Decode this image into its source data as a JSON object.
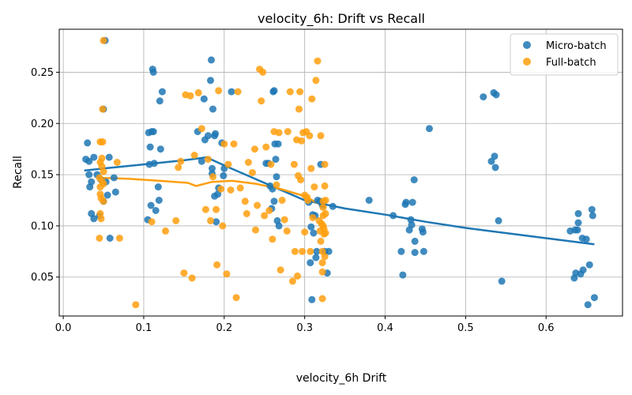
{
  "chart_data": {
    "type": "scatter",
    "title": "velocity_6h: Drift vs Recall",
    "xlabel": "velocity_6h Drift",
    "ylabel": "Recall",
    "xlim": [
      -0.005,
      0.695
    ],
    "ylim": [
      0.012,
      0.292
    ],
    "xticks": [
      0.0,
      0.1,
      0.2,
      0.3,
      0.4,
      0.5,
      0.6
    ],
    "xtick_labels": [
      "0.0",
      "0.1",
      "0.2",
      "0.3",
      "0.4",
      "0.5",
      "0.6"
    ],
    "yticks": [
      0.05,
      0.1,
      0.15,
      0.2,
      0.25
    ],
    "ytick_labels": [
      "0.05",
      "0.10",
      "0.15",
      "0.20",
      "0.25"
    ],
    "grid": true,
    "legend_position": "top-right",
    "series": [
      {
        "name": "Micro-batch",
        "color": "#1f77b4",
        "points": [
          [
            0.052,
            0.281
          ],
          [
            0.05,
            0.214
          ],
          [
            0.028,
            0.165
          ],
          [
            0.032,
            0.163
          ],
          [
            0.03,
            0.181
          ],
          [
            0.032,
            0.15
          ],
          [
            0.033,
            0.138
          ],
          [
            0.035,
            0.112
          ],
          [
            0.035,
            0.143
          ],
          [
            0.038,
            0.167
          ],
          [
            0.038,
            0.107
          ],
          [
            0.042,
            0.15
          ],
          [
            0.045,
            0.11
          ],
          [
            0.047,
            0.145
          ],
          [
            0.05,
            0.124
          ],
          [
            0.053,
            0.143
          ],
          [
            0.055,
            0.13
          ],
          [
            0.057,
            0.167
          ],
          [
            0.058,
            0.088
          ],
          [
            0.063,
            0.147
          ],
          [
            0.065,
            0.133
          ],
          [
            0.105,
            0.106
          ],
          [
            0.106,
            0.191
          ],
          [
            0.107,
            0.16
          ],
          [
            0.108,
            0.177
          ],
          [
            0.109,
            0.12
          ],
          [
            0.11,
            0.192
          ],
          [
            0.111,
            0.253
          ],
          [
            0.112,
            0.25
          ],
          [
            0.112,
            0.192
          ],
          [
            0.113,
            0.161
          ],
          [
            0.115,
            0.115
          ],
          [
            0.118,
            0.138
          ],
          [
            0.119,
            0.125
          ],
          [
            0.12,
            0.222
          ],
          [
            0.121,
            0.175
          ],
          [
            0.123,
            0.231
          ],
          [
            0.167,
            0.192
          ],
          [
            0.172,
            0.163
          ],
          [
            0.175,
            0.224
          ],
          [
            0.176,
            0.184
          ],
          [
            0.18,
            0.188
          ],
          [
            0.183,
            0.242
          ],
          [
            0.184,
            0.262
          ],
          [
            0.185,
            0.156
          ],
          [
            0.185,
            0.151
          ],
          [
            0.186,
            0.214
          ],
          [
            0.188,
            0.129
          ],
          [
            0.188,
            0.188
          ],
          [
            0.189,
            0.19
          ],
          [
            0.19,
            0.104
          ],
          [
            0.192,
            0.131
          ],
          [
            0.193,
            0.137
          ],
          [
            0.197,
            0.181
          ],
          [
            0.199,
            0.149
          ],
          [
            0.2,
            0.156
          ],
          [
            0.209,
            0.231
          ],
          [
            0.252,
            0.161
          ],
          [
            0.255,
            0.161
          ],
          [
            0.257,
            0.139
          ],
          [
            0.259,
            0.117
          ],
          [
            0.26,
            0.136
          ],
          [
            0.261,
            0.231
          ],
          [
            0.262,
            0.232
          ],
          [
            0.262,
            0.124
          ],
          [
            0.263,
            0.18
          ],
          [
            0.264,
            0.165
          ],
          [
            0.265,
            0.148
          ],
          [
            0.266,
            0.105
          ],
          [
            0.267,
            0.18
          ],
          [
            0.268,
            0.1
          ],
          [
            0.305,
            0.123
          ],
          [
            0.307,
            0.064
          ],
          [
            0.308,
            0.099
          ],
          [
            0.309,
            0.028
          ],
          [
            0.31,
            0.111
          ],
          [
            0.311,
            0.093
          ],
          [
            0.313,
            0.11
          ],
          [
            0.314,
            0.069
          ],
          [
            0.315,
            0.075
          ],
          [
            0.316,
            0.125
          ],
          [
            0.319,
            0.124
          ],
          [
            0.32,
            0.16
          ],
          [
            0.322,
            0.12
          ],
          [
            0.325,
            0.075
          ],
          [
            0.328,
            0.054
          ],
          [
            0.33,
            0.075
          ],
          [
            0.335,
            0.119
          ],
          [
            0.38,
            0.125
          ],
          [
            0.41,
            0.11
          ],
          [
            0.42,
            0.075
          ],
          [
            0.422,
            0.052
          ],
          [
            0.425,
            0.121
          ],
          [
            0.426,
            0.123
          ],
          [
            0.43,
            0.096
          ],
          [
            0.432,
            0.106
          ],
          [
            0.433,
            0.101
          ],
          [
            0.434,
            0.123
          ],
          [
            0.436,
            0.145
          ],
          [
            0.437,
            0.085
          ],
          [
            0.437,
            0.074
          ],
          [
            0.446,
            0.097
          ],
          [
            0.447,
            0.094
          ],
          [
            0.448,
            0.075
          ],
          [
            0.455,
            0.195
          ],
          [
            0.522,
            0.226
          ],
          [
            0.532,
            0.163
          ],
          [
            0.535,
            0.23
          ],
          [
            0.536,
            0.168
          ],
          [
            0.537,
            0.157
          ],
          [
            0.538,
            0.228
          ],
          [
            0.541,
            0.105
          ],
          [
            0.545,
            0.046
          ],
          [
            0.63,
            0.095
          ],
          [
            0.635,
            0.049
          ],
          [
            0.636,
            0.096
          ],
          [
            0.637,
            0.054
          ],
          [
            0.639,
            0.096
          ],
          [
            0.64,
            0.103
          ],
          [
            0.64,
            0.112
          ],
          [
            0.643,
            0.053
          ],
          [
            0.645,
            0.088
          ],
          [
            0.646,
            0.057
          ],
          [
            0.65,
            0.087
          ],
          [
            0.652,
            0.023
          ],
          [
            0.654,
            0.062
          ],
          [
            0.657,
            0.116
          ],
          [
            0.658,
            0.11
          ],
          [
            0.66,
            0.03
          ]
        ]
      },
      {
        "name": "Full-batch",
        "color": "#ff9f0e",
        "points": [
          [
            0.05,
            0.281
          ],
          [
            0.049,
            0.214
          ],
          [
            0.046,
            0.182
          ],
          [
            0.049,
            0.182
          ],
          [
            0.046,
            0.162
          ],
          [
            0.048,
            0.166
          ],
          [
            0.048,
            0.158
          ],
          [
            0.05,
            0.153
          ],
          [
            0.045,
            0.147
          ],
          [
            0.048,
            0.144
          ],
          [
            0.05,
            0.141
          ],
          [
            0.046,
            0.138
          ],
          [
            0.046,
            0.131
          ],
          [
            0.047,
            0.127
          ],
          [
            0.05,
            0.124
          ],
          [
            0.046,
            0.112
          ],
          [
            0.047,
            0.107
          ],
          [
            0.045,
            0.088
          ],
          [
            0.067,
            0.162
          ],
          [
            0.07,
            0.088
          ],
          [
            0.09,
            0.023
          ],
          [
            0.11,
            0.104
          ],
          [
            0.127,
            0.095
          ],
          [
            0.14,
            0.105
          ],
          [
            0.143,
            0.157
          ],
          [
            0.146,
            0.163
          ],
          [
            0.15,
            0.054
          ],
          [
            0.152,
            0.228
          ],
          [
            0.158,
            0.227
          ],
          [
            0.16,
            0.049
          ],
          [
            0.163,
            0.169
          ],
          [
            0.168,
            0.23
          ],
          [
            0.172,
            0.195
          ],
          [
            0.177,
            0.116
          ],
          [
            0.18,
            0.165
          ],
          [
            0.183,
            0.105
          ],
          [
            0.186,
            0.148
          ],
          [
            0.19,
            0.116
          ],
          [
            0.191,
            0.062
          ],
          [
            0.193,
            0.232
          ],
          [
            0.196,
            0.136
          ],
          [
            0.198,
            0.1
          ],
          [
            0.2,
            0.18
          ],
          [
            0.203,
            0.053
          ],
          [
            0.205,
            0.16
          ],
          [
            0.208,
            0.135
          ],
          [
            0.212,
            0.18
          ],
          [
            0.215,
            0.03
          ],
          [
            0.217,
            0.231
          ],
          [
            0.22,
            0.137
          ],
          [
            0.226,
            0.124
          ],
          [
            0.228,
            0.112
          ],
          [
            0.23,
            0.162
          ],
          [
            0.235,
            0.152
          ],
          [
            0.238,
            0.175
          ],
          [
            0.239,
            0.096
          ],
          [
            0.241,
            0.12
          ],
          [
            0.244,
            0.253
          ],
          [
            0.246,
            0.222
          ],
          [
            0.248,
            0.25
          ],
          [
            0.25,
            0.11
          ],
          [
            0.252,
            0.177
          ],
          [
            0.256,
            0.115
          ],
          [
            0.258,
            0.16
          ],
          [
            0.26,
            0.087
          ],
          [
            0.262,
            0.192
          ],
          [
            0.265,
            0.14
          ],
          [
            0.268,
            0.191
          ],
          [
            0.27,
            0.057
          ],
          [
            0.272,
            0.125
          ],
          [
            0.275,
            0.106
          ],
          [
            0.278,
            0.095
          ],
          [
            0.279,
            0.192
          ],
          [
            0.282,
            0.231
          ],
          [
            0.285,
            0.046
          ],
          [
            0.287,
            0.16
          ],
          [
            0.288,
            0.075
          ],
          [
            0.29,
            0.184
          ],
          [
            0.291,
            0.051
          ],
          [
            0.292,
            0.149
          ],
          [
            0.293,
            0.214
          ],
          [
            0.294,
            0.231
          ],
          [
            0.295,
            0.145
          ],
          [
            0.296,
            0.183
          ],
          [
            0.297,
            0.075
          ],
          [
            0.298,
            0.191
          ],
          [
            0.3,
            0.13
          ],
          [
            0.3,
            0.094
          ],
          [
            0.302,
            0.192
          ],
          [
            0.303,
            0.128
          ],
          [
            0.304,
            0.125
          ],
          [
            0.306,
            0.188
          ],
          [
            0.307,
            0.075
          ],
          [
            0.308,
            0.156
          ],
          [
            0.309,
            0.224
          ],
          [
            0.31,
            0.108
          ],
          [
            0.312,
            0.138
          ],
          [
            0.314,
            0.242
          ],
          [
            0.316,
            0.261
          ],
          [
            0.318,
            0.105
          ],
          [
            0.319,
            0.095
          ],
          [
            0.32,
            0.188
          ],
          [
            0.32,
            0.085
          ],
          [
            0.321,
            0.102
          ],
          [
            0.322,
            0.075
          ],
          [
            0.322,
            0.064
          ],
          [
            0.322,
            0.055
          ],
          [
            0.322,
            0.029
          ],
          [
            0.323,
            0.124
          ],
          [
            0.323,
            0.118
          ],
          [
            0.323,
            0.11
          ],
          [
            0.323,
            0.1
          ],
          [
            0.324,
            0.097
          ],
          [
            0.324,
            0.092
          ],
          [
            0.325,
            0.07
          ],
          [
            0.325,
            0.139
          ],
          [
            0.325,
            0.16
          ],
          [
            0.326,
            0.125
          ],
          [
            0.326,
            0.112
          ],
          [
            0.326,
            0.093
          ]
        ]
      },
      {
        "name": "",
        "type": "line",
        "color": "#1f77b4",
        "points": [
          [
            0.026,
            0.154
          ],
          [
            0.05,
            0.156
          ],
          [
            0.1,
            0.16
          ],
          [
            0.15,
            0.164
          ],
          [
            0.178,
            0.167
          ],
          [
            0.2,
            0.159
          ],
          [
            0.25,
            0.142
          ],
          [
            0.3,
            0.125
          ],
          [
            0.35,
            0.117
          ],
          [
            0.4,
            0.111
          ],
          [
            0.45,
            0.104
          ],
          [
            0.5,
            0.098
          ],
          [
            0.55,
            0.093
          ],
          [
            0.6,
            0.088
          ],
          [
            0.66,
            0.082
          ]
        ]
      },
      {
        "name": "",
        "type": "line",
        "color": "#ff9f0e",
        "points": [
          [
            0.043,
            0.147
          ],
          [
            0.08,
            0.146
          ],
          [
            0.12,
            0.144
          ],
          [
            0.155,
            0.142
          ],
          [
            0.165,
            0.139
          ],
          [
            0.185,
            0.143
          ],
          [
            0.21,
            0.144
          ],
          [
            0.24,
            0.141
          ],
          [
            0.27,
            0.136
          ],
          [
            0.3,
            0.129
          ],
          [
            0.326,
            0.118
          ]
        ]
      }
    ]
  }
}
